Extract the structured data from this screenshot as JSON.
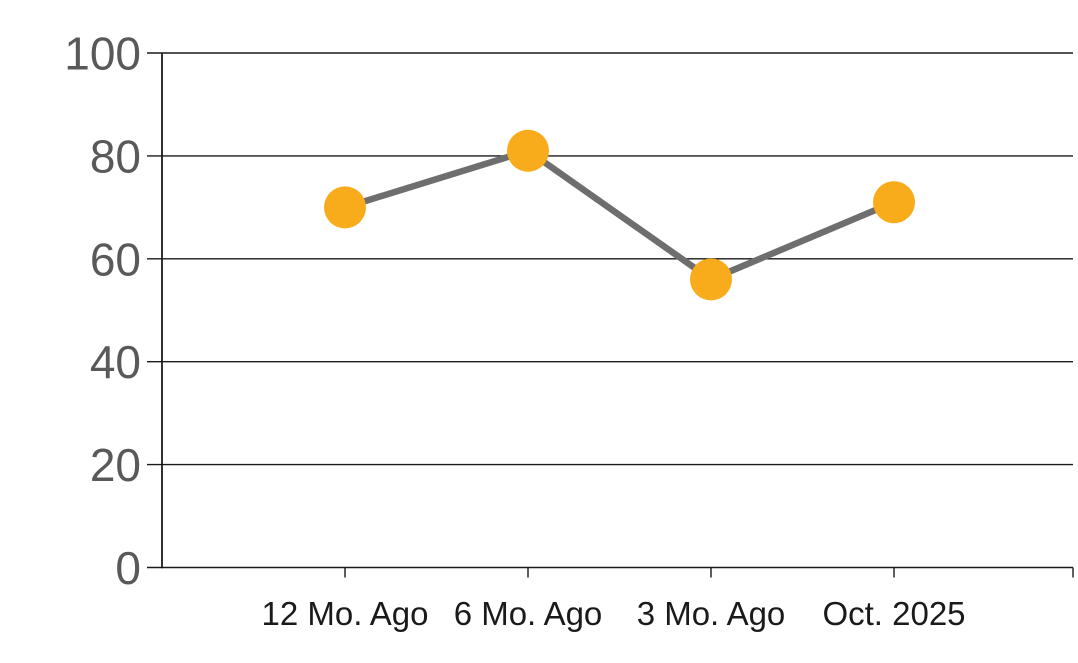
{
  "chart_data": {
    "type": "line",
    "categories": [
      "12 Mo. Ago",
      "6 Mo. Ago",
      "3 Mo. Ago",
      "Oct. 2025"
    ],
    "series": [
      {
        "name": "values",
        "values": [
          70,
          81,
          56,
          71
        ]
      }
    ],
    "ylim": [
      0,
      100
    ],
    "yticks": [
      0,
      20,
      40,
      60,
      80,
      100
    ],
    "grid": true,
    "legend": false,
    "colors": {
      "marker": "#F8AC1C",
      "line": "#6E6E6E",
      "axis": "#1A1A1A",
      "gridline": "#1A1A1A",
      "ytick_label": "#595959",
      "xtick_label": "#1A1A1A",
      "background": "#FFFFFF"
    }
  }
}
